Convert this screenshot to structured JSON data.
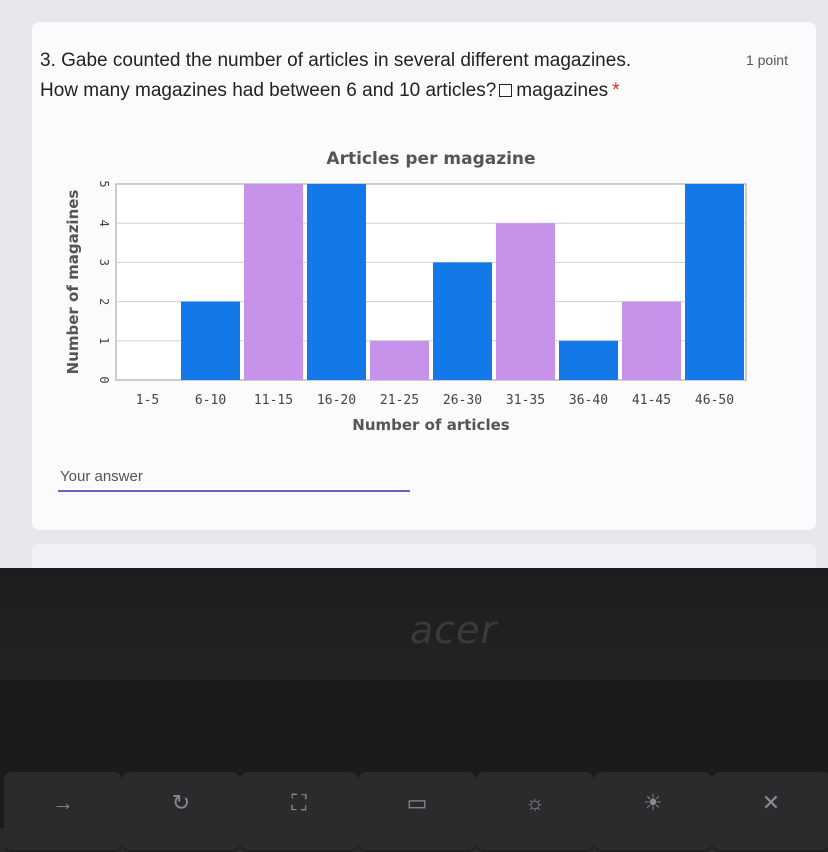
{
  "question": {
    "line1": "3. Gabe counted the number of articles in several different magazines.",
    "line2_before": "How many magazines had between 6 and 10 articles?",
    "line2_after": "magazines",
    "required_mark": "*",
    "points": "1 point"
  },
  "answer": {
    "placeholder": "Your answer"
  },
  "laptop": {
    "brand": "acer"
  },
  "keys": [
    {
      "icon": "arrow-right-icon",
      "glyph": "→"
    },
    {
      "icon": "refresh-icon",
      "glyph": "↻"
    },
    {
      "icon": "fullscreen-icon",
      "glyph": "⛶"
    },
    {
      "icon": "overview-icon",
      "glyph": "▭"
    },
    {
      "icon": "brightness-down-icon",
      "glyph": "☼"
    },
    {
      "icon": "brightness-up-icon",
      "glyph": "☀"
    },
    {
      "icon": "mute-icon",
      "glyph": "✕"
    }
  ],
  "colors": {
    "blue": "#1479e8",
    "purple": "#c692ea"
  },
  "chart_data": {
    "type": "bar",
    "title": "Articles per magazine",
    "xlabel": "Number of articles",
    "ylabel": "Number of magazines",
    "categories": [
      "1-5",
      "6-10",
      "11-15",
      "16-20",
      "21-25",
      "26-30",
      "31-35",
      "36-40",
      "41-45",
      "46-50"
    ],
    "values": [
      0,
      2,
      5,
      5,
      1,
      3,
      4,
      1,
      2,
      5
    ],
    "bar_colors": [
      "blue",
      "blue",
      "purple",
      "blue",
      "purple",
      "blue",
      "purple",
      "blue",
      "purple",
      "blue"
    ],
    "yticks": [
      0,
      1,
      2,
      3,
      4,
      5
    ],
    "ylim": [
      0,
      5
    ],
    "grid": true
  }
}
